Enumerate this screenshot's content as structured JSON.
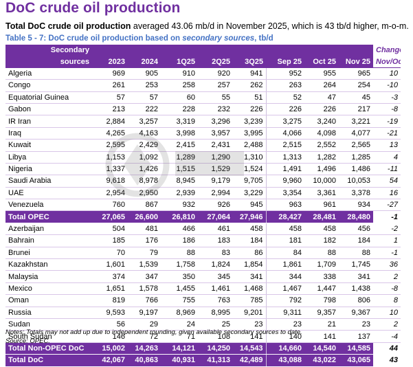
{
  "title": "DoC crude oil production",
  "subtitle": {
    "bold": "Total DoC crude oil production",
    "rest": " averaged 43.06 mb/d in November 2025, which is 43 tb/d higher, m-o-m."
  },
  "table_caption": {
    "prefix": "Table 5 - 7: DoC crude oil production based on ",
    "italic": "secondary sources",
    "suffix": ", tb/d"
  },
  "columns": {
    "label_line1": "Secondary",
    "label_line2": "sources",
    "years": [
      "2023",
      "2024",
      "1Q25",
      "2Q25",
      "3Q25",
      "Sep 25",
      "Oct 25",
      "Nov 25"
    ],
    "change_line1": "Change",
    "change_line2": "Nov/Oct"
  },
  "opec_rows": [
    {
      "name": "Algeria",
      "values": [
        "969",
        "905",
        "910",
        "920",
        "941",
        "952",
        "955",
        "965"
      ],
      "change": "10"
    },
    {
      "name": "Congo",
      "values": [
        "261",
        "253",
        "258",
        "257",
        "262",
        "263",
        "264",
        "254"
      ],
      "change": "-10"
    },
    {
      "name": "Equatorial Guinea",
      "values": [
        "57",
        "57",
        "60",
        "55",
        "51",
        "52",
        "47",
        "45"
      ],
      "change": "-3"
    },
    {
      "name": "Gabon",
      "values": [
        "213",
        "222",
        "228",
        "232",
        "226",
        "226",
        "226",
        "217"
      ],
      "change": "-8"
    },
    {
      "name": "IR Iran",
      "values": [
        "2,884",
        "3,257",
        "3,319",
        "3,296",
        "3,239",
        "3,275",
        "3,240",
        "3,221"
      ],
      "change": "-19"
    },
    {
      "name": "Iraq",
      "values": [
        "4,265",
        "4,163",
        "3,998",
        "3,957",
        "3,995",
        "4,066",
        "4,098",
        "4,077"
      ],
      "change": "-21"
    },
    {
      "name": "Kuwait",
      "values": [
        "2,595",
        "2,429",
        "2,415",
        "2,431",
        "2,488",
        "2,515",
        "2,552",
        "2,565"
      ],
      "change": "13"
    },
    {
      "name": "Libya",
      "values": [
        "1,153",
        "1,092",
        "1,289",
        "1,290",
        "1,310",
        "1,313",
        "1,282",
        "1,285"
      ],
      "change": "4"
    },
    {
      "name": "Nigeria",
      "values": [
        "1,337",
        "1,426",
        "1,515",
        "1,529",
        "1,524",
        "1,491",
        "1,496",
        "1,486"
      ],
      "change": "-11"
    },
    {
      "name": "Saudi Arabia",
      "values": [
        "9,618",
        "8,978",
        "8,945",
        "9,179",
        "9,705",
        "9,960",
        "10,000",
        "10,053"
      ],
      "change": "54"
    },
    {
      "name": "UAE",
      "values": [
        "2,954",
        "2,950",
        "2,939",
        "2,994",
        "3,229",
        "3,354",
        "3,361",
        "3,378"
      ],
      "change": "16"
    },
    {
      "name": "Venezuela",
      "values": [
        "760",
        "867",
        "932",
        "926",
        "945",
        "963",
        "961",
        "934"
      ],
      "change": "-27"
    }
  ],
  "total_opec": {
    "name": "Total  OPEC",
    "values": [
      "27,065",
      "26,600",
      "26,810",
      "27,064",
      "27,946",
      "28,427",
      "28,481",
      "28,480"
    ],
    "change": "-1"
  },
  "non_opec_rows": [
    {
      "name": "Azerbaijan",
      "values": [
        "504",
        "481",
        "466",
        "461",
        "458",
        "458",
        "458",
        "456"
      ],
      "change": "-2"
    },
    {
      "name": "Bahrain",
      "values": [
        "185",
        "176",
        "186",
        "183",
        "184",
        "181",
        "182",
        "184"
      ],
      "change": "1"
    },
    {
      "name": "Brunei",
      "values": [
        "70",
        "79",
        "88",
        "83",
        "86",
        "84",
        "88",
        "88"
      ],
      "change": "-1"
    },
    {
      "name": "Kazakhstan",
      "values": [
        "1,601",
        "1,539",
        "1,758",
        "1,824",
        "1,854",
        "1,861",
        "1,709",
        "1,745"
      ],
      "change": "36"
    },
    {
      "name": "Malaysia",
      "values": [
        "374",
        "347",
        "350",
        "345",
        "341",
        "344",
        "338",
        "341"
      ],
      "change": "2"
    },
    {
      "name": "Mexico",
      "values": [
        "1,651",
        "1,578",
        "1,455",
        "1,461",
        "1,468",
        "1,467",
        "1,447",
        "1,438"
      ],
      "change": "-8"
    },
    {
      "name": "Oman",
      "values": [
        "819",
        "766",
        "755",
        "763",
        "785",
        "792",
        "798",
        "806"
      ],
      "change": "8"
    },
    {
      "name": "Russia",
      "values": [
        "9,593",
        "9,197",
        "8,969",
        "8,995",
        "9,201",
        "9,311",
        "9,357",
        "9,367"
      ],
      "change": "10"
    },
    {
      "name": "Sudan",
      "values": [
        "56",
        "29",
        "24",
        "25",
        "23",
        "23",
        "21",
        "23"
      ],
      "change": "2"
    },
    {
      "name": "South Sudan",
      "values": [
        "146",
        "72",
        "71",
        "108",
        "141",
        "140",
        "141",
        "137"
      ],
      "change": "-4"
    }
  ],
  "total_non_opec": {
    "name": "Total Non-OPEC DoC",
    "values": [
      "15,002",
      "14,263",
      "14,121",
      "14,250",
      "14,543",
      "14,660",
      "14,540",
      "14,585"
    ],
    "change": "44"
  },
  "total_doc": {
    "name": "Total DoC",
    "values": [
      "42,067",
      "40,863",
      "40,931",
      "41,313",
      "42,489",
      "43,088",
      "43,022",
      "43,065"
    ],
    "change": "43"
  },
  "notes": {
    "line1": "Notes: Totals may not add up due to independent rounding, given available secondary sources to date.",
    "line2": "Source: OPEC."
  },
  "colors": {
    "accent": "#7030a0",
    "caption": "#4472c4",
    "row_line": "#d9c6e8"
  }
}
